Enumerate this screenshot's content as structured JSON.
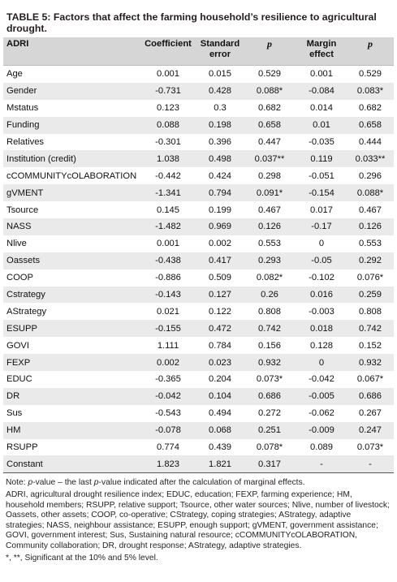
{
  "caption": {
    "label": "TABLE 5:",
    "text": "Factors that affect the farming household’s resilience to agricultural drought."
  },
  "table": {
    "headers": [
      "ADRI",
      "Coefficient",
      "Standard error",
      "p",
      "Margin effect",
      "p"
    ],
    "rows": [
      [
        "Age",
        "0.001",
        "0.015",
        "0.529",
        "0.001",
        "0.529"
      ],
      [
        "Gender",
        "-0.731",
        "0.428",
        "0.088*",
        "-0.084",
        "0.083*"
      ],
      [
        "Mstatus",
        "0.123",
        "0.3",
        "0.682",
        "0.014",
        "0.682"
      ],
      [
        "Funding",
        "0.088",
        "0.198",
        "0.658",
        "0.01",
        "0.658"
      ],
      [
        "Relatives",
        "-0.301",
        "0.396",
        "0.447",
        "-0.035",
        "0.444"
      ],
      [
        "Institution (credit)",
        "1.038",
        "0.498",
        "0.037**",
        "0.119",
        "0.033**"
      ],
      [
        "cCOMMUNITYcOLABORATION",
        "-0.442",
        "0.424",
        "0.298",
        "-0.051",
        "0.296"
      ],
      [
        "gVMENT",
        "-1.341",
        "0.794",
        "0.091*",
        "-0.154",
        "0.088*"
      ],
      [
        "Tsource",
        "0.145",
        "0.199",
        "0.467",
        "0.017",
        "0.467"
      ],
      [
        "NASS",
        "-1.482",
        "0.969",
        "0.126",
        "-0.17",
        "0.126"
      ],
      [
        "Nlive",
        "0.001",
        "0.002",
        "0.553",
        "0",
        "0.553"
      ],
      [
        "Oassets",
        "-0.438",
        "0.417",
        "0.293",
        "-0.05",
        "0.292"
      ],
      [
        "COOP",
        "-0.886",
        "0.509",
        "0.082*",
        "-0.102",
        "0.076*"
      ],
      [
        "Cstrategy",
        "-0.143",
        "0.127",
        "0.26",
        "0.016",
        "0.259"
      ],
      [
        "AStrategy",
        "0.021",
        "0.122",
        "0.808",
        "-0.003",
        "0.808"
      ],
      [
        "ESUPP",
        "-0.155",
        "0.472",
        "0.742",
        "0.018",
        "0.742"
      ],
      [
        "GOVI",
        "1.111",
        "0.784",
        "0.156",
        "0.128",
        "0.152"
      ],
      [
        "FEXP",
        "0.002",
        "0.023",
        "0.932",
        "0",
        "0.932"
      ],
      [
        "EDUC",
        "-0.365",
        "0.204",
        "0.073*",
        "-0.042",
        "0.067*"
      ],
      [
        "DR",
        "-0.042",
        "0.104",
        "0.686",
        "-0.005",
        "0.686"
      ],
      [
        "Sus",
        "-0.543",
        "0.494",
        "0.272",
        "-0.062",
        "0.267"
      ],
      [
        "HM",
        "-0.078",
        "0.068",
        "0.251",
        "-0.009",
        "0.247"
      ],
      [
        "RSUPP",
        "0.774",
        "0.439",
        "0.078*",
        "0.089",
        "0.073*"
      ],
      [
        "Constant",
        "1.823",
        "1.821",
        "0.317",
        "-",
        "-"
      ]
    ]
  },
  "notes": {
    "note_prefix": "Note: ",
    "note_p1": "p",
    "note_mid": "-value – the last ",
    "note_p2": "p",
    "note_end": "-value indicated after the calculation of marginal effects.",
    "abbreviations": "ADRI, agricultural drought resilience index; EDUC, education; FEXP, farming experience; HM, household members; RSUPP, relative support; Tsource, other water sources; Nlive, number of livestock; Oassets, other assets; COOP, co-operative; CStrategy, coping strategies; AStrategy, adaptive strategies; NASS, neighbour assistance; ESUPP, enough support; gVMENT, government assistance; GOVI, government interest; Sus, Sustaining natural resource; cCOMMUNITYcOLABORATION, Community collaboration; DR, drought response; AStrategy, adaptive strategies.",
    "significance": "*, **, Significant at the 10% and 5% level."
  }
}
